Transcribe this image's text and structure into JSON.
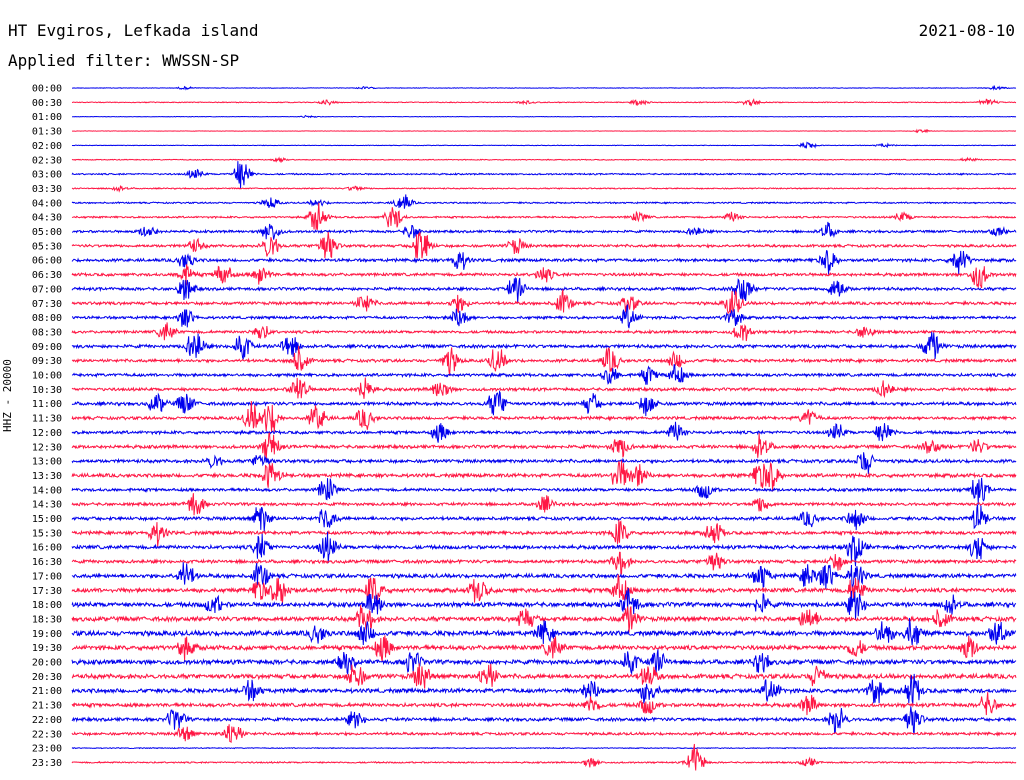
{
  "header": {
    "title": "HT Evgiros, Lefkada island",
    "date": "2021-08-10",
    "filter": "Applied filter: WWSSN-SP"
  },
  "chart_data": {
    "type": "line",
    "title": "HT Evgiros, Lefkada island",
    "subtitle": "Applied filter: WWSSN-SP",
    "ylabel": "HHZ - 20000",
    "xlabel": "",
    "grid": false,
    "legend": "none",
    "series_colors": [
      "#0000ee",
      "#ff1744"
    ],
    "rows": [
      {
        "time": "00:00",
        "color": "#0000ee",
        "activity": 0.2,
        "events": [
          [
            0.12,
            0.15
          ],
          [
            0.31,
            0.15
          ],
          [
            0.98,
            0.2
          ]
        ]
      },
      {
        "time": "00:30",
        "color": "#ff1744",
        "activity": 0.3,
        "events": [
          [
            0.27,
            0.3
          ],
          [
            0.48,
            0.2
          ],
          [
            0.6,
            0.4
          ],
          [
            0.72,
            0.5
          ],
          [
            0.97,
            0.4
          ]
        ]
      },
      {
        "time": "01:00",
        "color": "#0000ee",
        "activity": 0.15,
        "events": [
          [
            0.25,
            0.15
          ]
        ]
      },
      {
        "time": "01:30",
        "color": "#ff1744",
        "activity": 0.15,
        "events": [
          [
            0.9,
            0.2
          ]
        ]
      },
      {
        "time": "02:00",
        "color": "#0000ee",
        "activity": 0.2,
        "events": [
          [
            0.78,
            0.4
          ],
          [
            0.86,
            0.2
          ]
        ]
      },
      {
        "time": "02:30",
        "color": "#ff1744",
        "activity": 0.3,
        "events": [
          [
            0.22,
            0.3
          ],
          [
            0.95,
            0.2
          ]
        ]
      },
      {
        "time": "03:00",
        "color": "#0000ee",
        "activity": 0.5,
        "events": [
          [
            0.13,
            0.6
          ],
          [
            0.18,
            2.0
          ]
        ]
      },
      {
        "time": "03:30",
        "color": "#ff1744",
        "activity": 0.4,
        "events": [
          [
            0.05,
            0.3
          ],
          [
            0.3,
            0.3
          ]
        ]
      },
      {
        "time": "04:00",
        "color": "#0000ee",
        "activity": 0.5,
        "events": [
          [
            0.21,
            0.7
          ],
          [
            0.26,
            0.4
          ],
          [
            0.35,
            1.2
          ]
        ]
      },
      {
        "time": "04:30",
        "color": "#ff1744",
        "activity": 0.6,
        "events": [
          [
            0.26,
            1.8
          ],
          [
            0.34,
            1.6
          ],
          [
            0.6,
            0.6
          ],
          [
            0.7,
            0.6
          ],
          [
            0.88,
            0.6
          ]
        ]
      },
      {
        "time": "05:00",
        "color": "#0000ee",
        "activity": 0.8,
        "events": [
          [
            0.08,
            0.8
          ],
          [
            0.21,
            1.4
          ],
          [
            0.36,
            0.9
          ],
          [
            0.66,
            0.5
          ],
          [
            0.8,
            1.0
          ],
          [
            0.98,
            0.6
          ]
        ]
      },
      {
        "time": "05:30",
        "color": "#ff1744",
        "activity": 0.9,
        "events": [
          [
            0.13,
            0.8
          ],
          [
            0.21,
            1.6
          ],
          [
            0.27,
            2.2
          ],
          [
            0.37,
            2.5
          ],
          [
            0.47,
            1.0
          ]
        ]
      },
      {
        "time": "06:00",
        "color": "#0000ee",
        "activity": 1.0,
        "events": [
          [
            0.12,
            1.1
          ],
          [
            0.41,
            1.3
          ],
          [
            0.8,
            1.6
          ],
          [
            0.94,
            1.8
          ]
        ]
      },
      {
        "time": "06:30",
        "color": "#ff1744",
        "activity": 1.0,
        "events": [
          [
            0.12,
            1.2
          ],
          [
            0.16,
            1.6
          ],
          [
            0.2,
            1.2
          ],
          [
            0.5,
            0.9
          ],
          [
            0.96,
            1.8
          ]
        ]
      },
      {
        "time": "07:00",
        "color": "#0000ee",
        "activity": 1.0,
        "events": [
          [
            0.12,
            1.4
          ],
          [
            0.47,
            1.6
          ],
          [
            0.71,
            2.0
          ],
          [
            0.81,
            1.4
          ]
        ]
      },
      {
        "time": "07:30",
        "color": "#ff1744",
        "activity": 1.0,
        "events": [
          [
            0.31,
            1.2
          ],
          [
            0.41,
            1.0
          ],
          [
            0.52,
            1.4
          ],
          [
            0.59,
            1.0
          ],
          [
            0.7,
            1.8
          ]
        ]
      },
      {
        "time": "08:00",
        "color": "#0000ee",
        "activity": 0.9,
        "events": [
          [
            0.12,
            1.2
          ],
          [
            0.41,
            1.4
          ],
          [
            0.59,
            1.4
          ],
          [
            0.7,
            1.2
          ]
        ]
      },
      {
        "time": "08:30",
        "color": "#ff1744",
        "activity": 0.9,
        "events": [
          [
            0.1,
            1.2
          ],
          [
            0.2,
            1.0
          ],
          [
            0.71,
            1.2
          ],
          [
            0.84,
            0.9
          ]
        ]
      },
      {
        "time": "09:00",
        "color": "#0000ee",
        "activity": 1.1,
        "events": [
          [
            0.13,
            2.0
          ],
          [
            0.18,
            1.8
          ],
          [
            0.23,
            1.6
          ],
          [
            0.91,
            2.0
          ]
        ]
      },
      {
        "time": "09:30",
        "color": "#ff1744",
        "activity": 1.0,
        "events": [
          [
            0.24,
            1.8
          ],
          [
            0.4,
            1.6
          ],
          [
            0.45,
            1.6
          ],
          [
            0.57,
            1.6
          ],
          [
            0.64,
            1.0
          ]
        ]
      },
      {
        "time": "10:00",
        "color": "#0000ee",
        "activity": 1.0,
        "events": [
          [
            0.57,
            1.2
          ],
          [
            0.61,
            1.0
          ],
          [
            0.64,
            1.4
          ]
        ]
      },
      {
        "time": "10:30",
        "color": "#ff1744",
        "activity": 1.0,
        "events": [
          [
            0.24,
            1.8
          ],
          [
            0.31,
            1.4
          ],
          [
            0.39,
            1.2
          ],
          [
            0.86,
            1.0
          ]
        ]
      },
      {
        "time": "11:00",
        "color": "#0000ee",
        "activity": 1.1,
        "events": [
          [
            0.09,
            1.2
          ],
          [
            0.12,
            1.4
          ],
          [
            0.45,
            1.8
          ],
          [
            0.55,
            1.2
          ],
          [
            0.61,
            1.4
          ]
        ]
      },
      {
        "time": "11:30",
        "color": "#ff1744",
        "activity": 1.0,
        "events": [
          [
            0.19,
            1.8
          ],
          [
            0.21,
            2.0
          ],
          [
            0.26,
            1.6
          ],
          [
            0.31,
            1.4
          ],
          [
            0.78,
            1.0
          ]
        ]
      },
      {
        "time": "12:00",
        "color": "#0000ee",
        "activity": 1.0,
        "events": [
          [
            0.39,
            1.2
          ],
          [
            0.64,
            1.2
          ],
          [
            0.81,
            1.0
          ],
          [
            0.86,
            1.4
          ]
        ]
      },
      {
        "time": "12:30",
        "color": "#ff1744",
        "activity": 1.1,
        "events": [
          [
            0.21,
            1.8
          ],
          [
            0.58,
            1.4
          ],
          [
            0.73,
            1.6
          ],
          [
            0.91,
            0.9
          ],
          [
            0.96,
            0.8
          ]
        ]
      },
      {
        "time": "13:00",
        "color": "#0000ee",
        "activity": 1.1,
        "events": [
          [
            0.15,
            0.8
          ],
          [
            0.2,
            1.0
          ],
          [
            0.84,
            1.6
          ]
        ]
      },
      {
        "time": "13:30",
        "color": "#ff1744",
        "activity": 1.2,
        "events": [
          [
            0.21,
            1.8
          ],
          [
            0.58,
            2.0
          ],
          [
            0.6,
            1.4
          ],
          [
            0.73,
            1.8
          ],
          [
            0.74,
            1.6
          ]
        ]
      },
      {
        "time": "14:00",
        "color": "#0000ee",
        "activity": 1.0,
        "events": [
          [
            0.27,
            1.6
          ],
          [
            0.67,
            1.2
          ],
          [
            0.96,
            1.8
          ]
        ]
      },
      {
        "time": "14:30",
        "color": "#ff1744",
        "activity": 1.0,
        "events": [
          [
            0.13,
            1.6
          ],
          [
            0.5,
            1.0
          ],
          [
            0.73,
            1.0
          ]
        ]
      },
      {
        "time": "15:00",
        "color": "#0000ee",
        "activity": 1.1,
        "events": [
          [
            0.2,
            1.8
          ],
          [
            0.27,
            1.4
          ],
          [
            0.78,
            1.0
          ],
          [
            0.83,
            1.4
          ],
          [
            0.96,
            1.6
          ]
        ]
      },
      {
        "time": "15:30",
        "color": "#ff1744",
        "activity": 1.1,
        "events": [
          [
            0.09,
            1.4
          ],
          [
            0.58,
            1.6
          ],
          [
            0.68,
            1.4
          ]
        ]
      },
      {
        "time": "16:00",
        "color": "#0000ee",
        "activity": 1.2,
        "events": [
          [
            0.2,
            1.6
          ],
          [
            0.27,
            1.8
          ],
          [
            0.83,
            2.0
          ],
          [
            0.96,
            1.8
          ]
        ]
      },
      {
        "time": "16:30",
        "color": "#ff1744",
        "activity": 1.1,
        "events": [
          [
            0.58,
            1.6
          ],
          [
            0.68,
            1.4
          ],
          [
            0.81,
            1.0
          ]
        ]
      },
      {
        "time": "17:00",
        "color": "#0000ee",
        "activity": 1.3,
        "events": [
          [
            0.12,
            1.8
          ],
          [
            0.2,
            1.6
          ],
          [
            0.73,
            1.6
          ],
          [
            0.78,
            1.4
          ],
          [
            0.8,
            1.6
          ],
          [
            0.83,
            1.8
          ]
        ]
      },
      {
        "time": "17:30",
        "color": "#ff1744",
        "activity": 1.4,
        "events": [
          [
            0.2,
            1.6
          ],
          [
            0.22,
            1.8
          ],
          [
            0.32,
            2.0
          ],
          [
            0.43,
            1.6
          ],
          [
            0.58,
            2.0
          ],
          [
            0.83,
            1.6
          ]
        ]
      },
      {
        "time": "18:00",
        "color": "#0000ee",
        "activity": 1.5,
        "events": [
          [
            0.15,
            1.2
          ],
          [
            0.32,
            1.6
          ],
          [
            0.59,
            2.0
          ],
          [
            0.73,
            1.2
          ],
          [
            0.83,
            1.8
          ],
          [
            0.93,
            1.2
          ]
        ]
      },
      {
        "time": "18:30",
        "color": "#ff1744",
        "activity": 1.5,
        "events": [
          [
            0.31,
            1.8
          ],
          [
            0.48,
            1.4
          ],
          [
            0.59,
            1.6
          ],
          [
            0.78,
            1.6
          ],
          [
            0.92,
            1.2
          ]
        ]
      },
      {
        "time": "19:00",
        "color": "#0000ee",
        "activity": 1.6,
        "events": [
          [
            0.26,
            1.2
          ],
          [
            0.31,
            1.4
          ],
          [
            0.5,
            1.4
          ],
          [
            0.86,
            1.6
          ],
          [
            0.89,
            1.8
          ],
          [
            0.98,
            1.6
          ]
        ]
      },
      {
        "time": "19:30",
        "color": "#ff1744",
        "activity": 1.5,
        "events": [
          [
            0.12,
            1.2
          ],
          [
            0.33,
            1.6
          ],
          [
            0.51,
            1.4
          ],
          [
            0.83,
            1.2
          ],
          [
            0.95,
            1.4
          ]
        ]
      },
      {
        "time": "20:00",
        "color": "#0000ee",
        "activity": 1.5,
        "events": [
          [
            0.29,
            1.2
          ],
          [
            0.36,
            1.4
          ],
          [
            0.59,
            1.6
          ],
          [
            0.62,
            1.4
          ],
          [
            0.73,
            1.2
          ]
        ]
      },
      {
        "time": "20:30",
        "color": "#ff1744",
        "activity": 1.5,
        "events": [
          [
            0.3,
            1.8
          ],
          [
            0.37,
            1.6
          ],
          [
            0.44,
            1.8
          ],
          [
            0.61,
            1.6
          ],
          [
            0.79,
            1.4
          ]
        ]
      },
      {
        "time": "21:00",
        "color": "#0000ee",
        "activity": 1.4,
        "events": [
          [
            0.19,
            1.2
          ],
          [
            0.55,
            1.4
          ],
          [
            0.61,
            1.6
          ],
          [
            0.74,
            1.6
          ],
          [
            0.85,
            1.6
          ],
          [
            0.89,
            2.0
          ]
        ]
      },
      {
        "time": "21:30",
        "color": "#ff1744",
        "activity": 1.2,
        "events": [
          [
            0.55,
            1.0
          ],
          [
            0.61,
            1.2
          ],
          [
            0.78,
            1.2
          ],
          [
            0.97,
            1.4
          ]
        ]
      },
      {
        "time": "22:00",
        "color": "#0000ee",
        "activity": 1.1,
        "events": [
          [
            0.11,
            1.4
          ],
          [
            0.3,
            1.0
          ],
          [
            0.81,
            1.8
          ],
          [
            0.89,
            2.0
          ]
        ]
      },
      {
        "time": "22:30",
        "color": "#ff1744",
        "activity": 0.9,
        "events": [
          [
            0.12,
            1.0
          ],
          [
            0.17,
            1.8
          ]
        ]
      },
      {
        "time": "23:00",
        "color": "#0000ee",
        "activity": 0.3,
        "events": []
      },
      {
        "time": "23:30",
        "color": "#ff1744",
        "activity": 0.5,
        "events": [
          [
            0.55,
            0.6
          ],
          [
            0.66,
            2.2
          ],
          [
            0.78,
            0.6
          ]
        ]
      }
    ]
  }
}
